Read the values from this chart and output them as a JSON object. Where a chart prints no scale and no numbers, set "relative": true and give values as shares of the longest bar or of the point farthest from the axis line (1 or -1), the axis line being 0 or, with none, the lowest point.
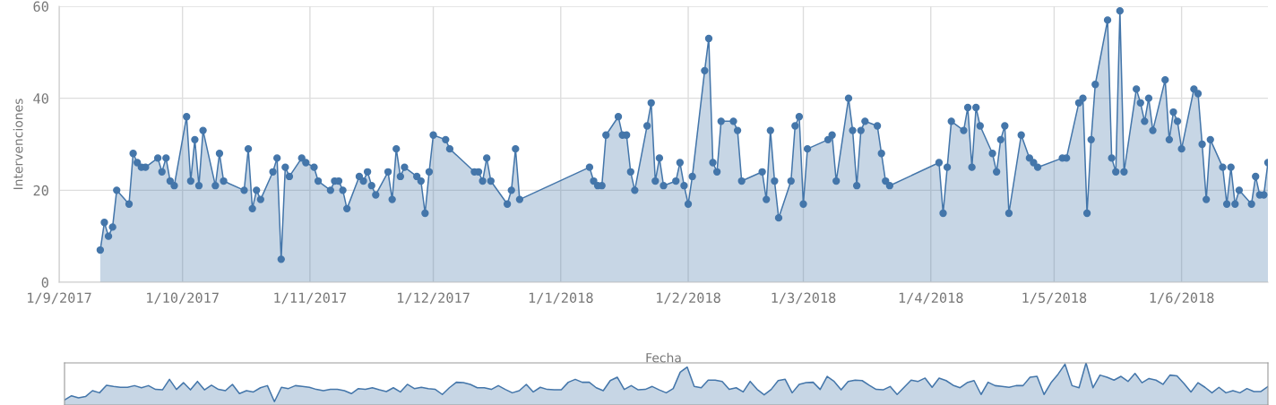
{
  "chart_data": [
    {
      "type": "area",
      "ylabel": "Intervenciones",
      "xlabel": "Fecha",
      "marker": "circle",
      "grid": true,
      "legend": false,
      "xlim": [
        "2017-09-01",
        "2018-06-22"
      ],
      "xticks": [
        {
          "value": "2017-09-01",
          "label": "1/9/2017"
        },
        {
          "value": "2017-10-01",
          "label": "1/10/2017"
        },
        {
          "value": "2017-11-01",
          "label": "1/11/2017"
        },
        {
          "value": "2017-12-01",
          "label": "1/12/2017"
        },
        {
          "value": "2018-01-01",
          "label": "1/1/2018"
        },
        {
          "value": "2018-02-01",
          "label": "1/2/2018"
        },
        {
          "value": "2018-03-01",
          "label": "1/3/2018"
        },
        {
          "value": "2018-04-01",
          "label": "1/4/2018"
        },
        {
          "value": "2018-05-01",
          "label": "1/5/2018"
        },
        {
          "value": "2018-06-01",
          "label": "1/6/2018"
        }
      ],
      "ylim": [
        0,
        60
      ],
      "yticks": [
        0,
        20,
        40,
        60
      ],
      "x": [
        "2017-09-11",
        "2017-09-12",
        "2017-09-13",
        "2017-09-14",
        "2017-09-15",
        "2017-09-18",
        "2017-09-19",
        "2017-09-20",
        "2017-09-21",
        "2017-09-22",
        "2017-09-25",
        "2017-09-26",
        "2017-09-27",
        "2017-09-28",
        "2017-09-29",
        "2017-10-02",
        "2017-10-03",
        "2017-10-04",
        "2017-10-05",
        "2017-10-06",
        "2017-10-09",
        "2017-10-10",
        "2017-10-11",
        "2017-10-16",
        "2017-10-17",
        "2017-10-18",
        "2017-10-19",
        "2017-10-20",
        "2017-10-23",
        "2017-10-24",
        "2017-10-25",
        "2017-10-26",
        "2017-10-27",
        "2017-10-30",
        "2017-10-31",
        "2017-11-02",
        "2017-11-03",
        "2017-11-06",
        "2017-11-07",
        "2017-11-08",
        "2017-11-09",
        "2017-11-10",
        "2017-11-13",
        "2017-11-14",
        "2017-11-15",
        "2017-11-16",
        "2017-11-17",
        "2017-11-20",
        "2017-11-21",
        "2017-11-22",
        "2017-11-23",
        "2017-11-24",
        "2017-11-27",
        "2017-11-28",
        "2017-11-29",
        "2017-11-30",
        "2017-12-01",
        "2017-12-04",
        "2017-12-05",
        "2017-12-11",
        "2017-12-12",
        "2017-12-13",
        "2017-12-14",
        "2017-12-15",
        "2017-12-19",
        "2017-12-20",
        "2017-12-21",
        "2017-12-22",
        "2018-01-08",
        "2018-01-09",
        "2018-01-10",
        "2018-01-11",
        "2018-01-12",
        "2018-01-15",
        "2018-01-16",
        "2018-01-17",
        "2018-01-18",
        "2018-01-19",
        "2018-01-22",
        "2018-01-23",
        "2018-01-24",
        "2018-01-25",
        "2018-01-26",
        "2018-01-29",
        "2018-01-30",
        "2018-01-31",
        "2018-02-01",
        "2018-02-02",
        "2018-02-05",
        "2018-02-06",
        "2018-02-07",
        "2018-02-08",
        "2018-02-09",
        "2018-02-12",
        "2018-02-13",
        "2018-02-14",
        "2018-02-19",
        "2018-02-20",
        "2018-02-21",
        "2018-02-22",
        "2018-02-23",
        "2018-02-26",
        "2018-02-27",
        "2018-02-28",
        "2018-03-01",
        "2018-03-02",
        "2018-03-07",
        "2018-03-08",
        "2018-03-09",
        "2018-03-12",
        "2018-03-13",
        "2018-03-14",
        "2018-03-15",
        "2018-03-16",
        "2018-03-19",
        "2018-03-20",
        "2018-03-21",
        "2018-03-22",
        "2018-04-03",
        "2018-04-04",
        "2018-04-05",
        "2018-04-06",
        "2018-04-09",
        "2018-04-10",
        "2018-04-11",
        "2018-04-12",
        "2018-04-13",
        "2018-04-16",
        "2018-04-17",
        "2018-04-18",
        "2018-04-19",
        "2018-04-20",
        "2018-04-23",
        "2018-04-25",
        "2018-04-26",
        "2018-04-27",
        "2018-05-03",
        "2018-05-04",
        "2018-05-07",
        "2018-05-08",
        "2018-05-09",
        "2018-05-10",
        "2018-05-11",
        "2018-05-14",
        "2018-05-15",
        "2018-05-16",
        "2018-05-17",
        "2018-05-18",
        "2018-05-21",
        "2018-05-22",
        "2018-05-23",
        "2018-05-24",
        "2018-05-25",
        "2018-05-28",
        "2018-05-29",
        "2018-05-30",
        "2018-05-31",
        "2018-06-01",
        "2018-06-04",
        "2018-06-05",
        "2018-06-06",
        "2018-06-07",
        "2018-06-08",
        "2018-06-11",
        "2018-06-12",
        "2018-06-13",
        "2018-06-14",
        "2018-06-15",
        "2018-06-18",
        "2018-06-19",
        "2018-06-20",
        "2018-06-21",
        "2018-06-22"
      ],
      "series": [
        {
          "color": "#4476aa",
          "values": [
            7,
            13,
            10,
            12,
            20,
            17,
            28,
            26,
            25,
            25,
            27,
            24,
            27,
            22,
            21,
            36,
            22,
            31,
            21,
            33,
            21,
            28,
            22,
            20,
            29,
            16,
            20,
            18,
            24,
            27,
            5,
            25,
            23,
            27,
            26,
            25,
            22,
            20,
            22,
            22,
            20,
            16,
            23,
            22,
            24,
            21,
            19,
            24,
            18,
            29,
            23,
            25,
            23,
            22,
            15,
            24,
            32,
            31,
            29,
            24,
            24,
            22,
            27,
            22,
            17,
            20,
            29,
            18,
            25,
            22,
            21,
            21,
            32,
            36,
            32,
            32,
            24,
            20,
            34,
            39,
            22,
            27,
            21,
            22,
            26,
            21,
            17,
            23,
            46,
            53,
            26,
            24,
            35,
            35,
            33,
            22,
            24,
            18,
            33,
            22,
            14,
            22,
            34,
            36,
            17,
            29,
            31,
            32,
            22,
            40,
            33,
            21,
            33,
            35,
            34,
            28,
            22,
            21,
            26,
            15,
            25,
            35,
            33,
            38,
            25,
            38,
            34,
            28,
            24,
            31,
            34,
            15,
            32,
            27,
            26,
            25,
            27,
            27,
            39,
            40,
            15,
            31,
            43,
            57,
            27,
            24,
            59,
            24,
            42,
            39,
            35,
            40,
            33,
            44,
            31,
            37,
            35,
            29,
            42,
            41,
            30,
            18,
            31,
            25,
            17,
            25,
            17,
            20,
            17,
            23,
            19,
            19,
            26
          ]
        }
      ]
    },
    {
      "type": "area",
      "marker": "none",
      "relative": true,
      "categories": [
        null,
        null,
        null,
        null,
        null,
        null,
        null,
        null,
        null,
        null,
        null,
        null,
        null,
        null,
        null,
        null,
        null,
        null,
        null,
        null,
        null,
        null,
        null,
        null,
        null,
        null,
        null,
        null,
        null,
        null,
        null,
        null,
        null,
        null,
        null,
        null,
        null,
        null,
        null,
        null,
        null,
        null,
        null,
        null,
        null,
        null,
        null,
        null,
        null,
        null,
        null,
        null,
        null,
        null,
        null,
        null,
        null,
        null,
        null,
        null,
        null,
        null,
        null,
        null,
        null,
        null,
        null,
        null,
        null,
        null,
        null,
        null,
        null,
        null,
        null,
        null,
        null,
        null,
        null,
        null,
        null,
        null,
        null,
        null,
        null,
        null,
        null,
        null,
        null,
        null,
        null,
        null,
        null,
        null,
        null,
        null,
        null,
        null,
        null,
        null,
        null,
        null,
        null,
        null,
        null,
        null,
        null,
        null,
        null,
        null,
        null,
        null,
        null,
        null,
        null,
        null,
        null,
        null,
        null,
        null,
        null,
        null,
        null,
        null,
        null,
        null,
        null,
        null,
        null,
        null,
        null,
        null,
        null,
        null,
        null,
        null,
        null,
        null,
        null,
        null,
        null,
        null,
        null,
        null,
        null,
        null,
        null,
        null,
        null,
        null,
        null,
        null,
        null,
        null,
        null,
        null,
        null,
        null,
        null,
        null,
        null,
        null,
        null,
        null,
        null,
        null,
        null,
        null,
        null,
        null,
        null,
        null,
        null
      ],
      "series": [
        {
          "color": "#4476aa",
          "values": [
            0.12,
            0.22,
            0.17,
            0.2,
            0.34,
            0.29,
            0.47,
            0.44,
            0.42,
            0.42,
            0.46,
            0.41,
            0.46,
            0.37,
            0.36,
            0.61,
            0.37,
            0.53,
            0.36,
            0.56,
            0.36,
            0.47,
            0.37,
            0.34,
            0.49,
            0.27,
            0.34,
            0.31,
            0.41,
            0.46,
            0.08,
            0.42,
            0.39,
            0.46,
            0.44,
            0.42,
            0.37,
            0.34,
            0.37,
            0.37,
            0.34,
            0.27,
            0.39,
            0.37,
            0.41,
            0.36,
            0.32,
            0.41,
            0.31,
            0.49,
            0.39,
            0.42,
            0.39,
            0.37,
            0.25,
            0.41,
            0.54,
            0.53,
            0.49,
            0.41,
            0.41,
            0.37,
            0.46,
            0.37,
            0.29,
            0.34,
            0.49,
            0.31,
            0.42,
            0.37,
            0.36,
            0.36,
            0.54,
            0.61,
            0.54,
            0.54,
            0.41,
            0.34,
            0.58,
            0.66,
            0.37,
            0.46,
            0.36,
            0.37,
            0.44,
            0.36,
            0.29,
            0.39,
            0.78,
            0.9,
            0.44,
            0.41,
            0.59,
            0.59,
            0.56,
            0.37,
            0.41,
            0.31,
            0.56,
            0.37,
            0.24,
            0.37,
            0.58,
            0.61,
            0.29,
            0.49,
            0.53,
            0.54,
            0.37,
            0.68,
            0.56,
            0.36,
            0.56,
            0.59,
            0.58,
            0.47,
            0.37,
            0.36,
            0.44,
            0.25,
            0.42,
            0.59,
            0.56,
            0.64,
            0.42,
            0.64,
            0.58,
            0.47,
            0.41,
            0.53,
            0.58,
            0.25,
            0.54,
            0.46,
            0.44,
            0.42,
            0.46,
            0.46,
            0.66,
            0.68,
            0.25,
            0.53,
            0.73,
            0.97,
            0.46,
            0.41,
            1,
            0.41,
            0.71,
            0.66,
            0.59,
            0.68,
            0.56,
            0.75,
            0.53,
            0.63,
            0.59,
            0.49,
            0.71,
            0.69,
            0.51,
            0.31,
            0.53,
            0.42,
            0.29,
            0.42,
            0.29,
            0.34,
            0.29,
            0.39,
            0.32,
            0.32,
            0.44
          ]
        }
      ]
    }
  ]
}
